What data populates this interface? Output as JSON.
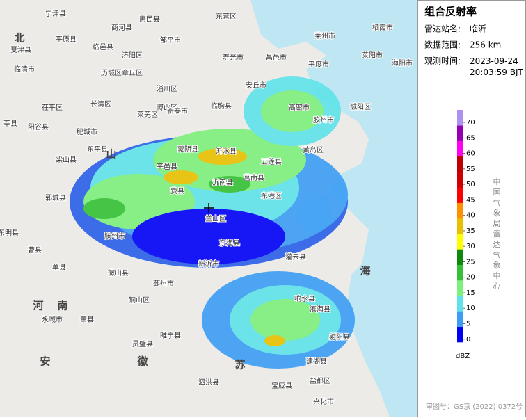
{
  "panel": {
    "title": "组合反射率",
    "rows": [
      [
        "雷达站名:",
        "临沂"
      ],
      [
        "数据范围:",
        "256 km"
      ],
      [
        "观测时间:",
        "2023-09-24\n20:03:59 BJT"
      ]
    ],
    "legend": {
      "levels": [
        0,
        5,
        10,
        15,
        20,
        25,
        30,
        35,
        40,
        45,
        50,
        55,
        60,
        65,
        70
      ],
      "colors": [
        "#0000f6",
        "#3c9df5",
        "#5fe3e9",
        "#7ef07c",
        "#35c035",
        "#0d8a0d",
        "#ffff00",
        "#e7c000",
        "#ff9000",
        "#ff0000",
        "#d00000",
        "#c00000",
        "#ff00f0",
        "#9600b4",
        "#ad90f0"
      ],
      "unit": "dBZ"
    },
    "credit": "中国气象局雷达气象中心",
    "approval": "审图号：GS京 (2022) 0372号"
  },
  "map": {
    "places": [
      "宁津县",
      "商河县",
      "惠民县",
      "东营区",
      "临邑县",
      "平原县",
      "夏津县",
      "济阳区",
      "邹平市",
      "寿光市",
      "昌邑市",
      "莱州市",
      "栖霞市",
      "莱阳市",
      "平度市",
      "海阳市",
      "临清市",
      "历城区",
      "章丘区",
      "淄川区",
      "安丘市",
      "茌平区",
      "长清区",
      "博山区",
      "临朐县",
      "高密市",
      "城阳区",
      "新泰市",
      "莱芜区",
      "胶州市",
      "阳谷县",
      "莘县",
      "肥城市",
      "东平县",
      "蒙阴县",
      "沂水县",
      "黄岛区",
      "五莲县",
      "梁山县",
      "平邑县",
      "莒南县",
      "沂南县",
      "费县",
      "东港区",
      "郓城县",
      "兰山区",
      "滕州市",
      "东海县",
      "东明县",
      "曹县",
      "新沂市",
      "单县",
      "灌云县",
      "微山县",
      "邳州市",
      "铜山区",
      "响水县",
      "滨海县",
      "萧县",
      "永城市",
      "睢宁县",
      "灵璧县",
      "射阳县",
      "建湖县",
      "泗洪县",
      "盐都区",
      "宝应县",
      "兴化市"
    ],
    "regions": [
      "北",
      "山",
      "河",
      "南",
      "安",
      "徽",
      "苏",
      "海"
    ]
  }
}
